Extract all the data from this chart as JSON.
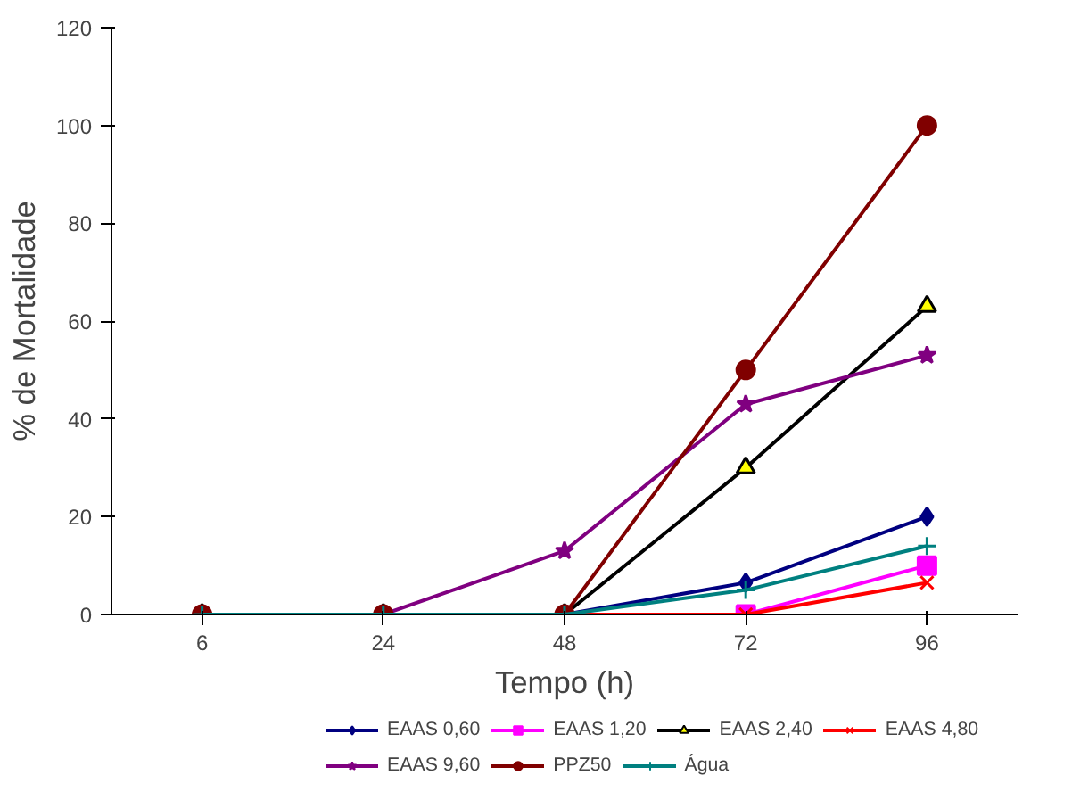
{
  "chart_data": {
    "type": "line",
    "xlabel": "Tempo (h)",
    "ylabel": "% de Mortalidade",
    "categories": [
      "6",
      "24",
      "48",
      "72",
      "96"
    ],
    "ylim": [
      0,
      120
    ],
    "yticks": [
      0,
      20,
      40,
      60,
      80,
      100,
      120
    ],
    "grid": false,
    "legend": "bottom",
    "series": [
      {
        "name": "EAAS 0,60",
        "color": "#000080",
        "marker": "diamond",
        "values": [
          0,
          0,
          0,
          6.5,
          20
        ]
      },
      {
        "name": "EAAS 1,20",
        "color": "#ff00ff",
        "marker": "square",
        "values": [
          null,
          null,
          null,
          0,
          10
        ]
      },
      {
        "name": "EAAS 2,40",
        "color": "#000000",
        "marker": "triangle",
        "values": [
          0,
          0,
          0,
          30,
          63
        ]
      },
      {
        "name": "EAAS 4,80",
        "color": "#ff0000",
        "marker": "x",
        "values": [
          0,
          0,
          0,
          0,
          6.5
        ]
      },
      {
        "name": "EAAS 9,60",
        "color": "#800080",
        "marker": "star",
        "values": [
          0,
          0,
          13,
          43,
          53
        ]
      },
      {
        "name": "PPZ50",
        "color": "#800000",
        "marker": "circle",
        "values": [
          0,
          0,
          0,
          50,
          100
        ]
      },
      {
        "name": "Água",
        "color": "#008080",
        "marker": "cross",
        "values": [
          0,
          0,
          0,
          5,
          14
        ]
      }
    ]
  }
}
